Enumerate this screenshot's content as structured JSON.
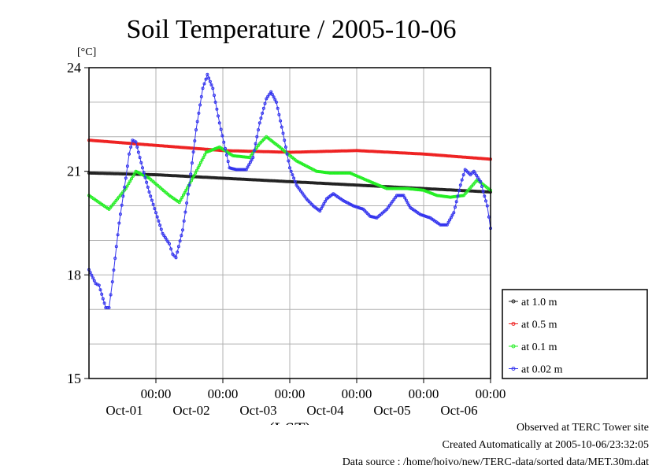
{
  "chart_data": {
    "type": "line",
    "title": "Soil Temperature / 2005-10-06",
    "ylabel_unit": "[°C]",
    "xlabel": "(LST)",
    "ylim": [
      15,
      24
    ],
    "xlim": [
      0,
      6
    ],
    "x_unit_note": "days from 2005-09-30 00:00 LST",
    "y_ticks": [
      15,
      18,
      21,
      24
    ],
    "x_tick_time_label": "00:00",
    "x_ticks": [
      {
        "x": 1,
        "time": "00:00",
        "date": "Oct-01"
      },
      {
        "x": 2,
        "time": "00:00",
        "date": "Oct-02"
      },
      {
        "x": 3,
        "time": "00:00",
        "date": "Oct-03"
      },
      {
        "x": 4,
        "time": "00:00",
        "date": "Oct-04"
      },
      {
        "x": 5,
        "time": "00:00",
        "date": "Oct-05"
      },
      {
        "x": 6,
        "time": "00:00",
        "date": "Oct-06"
      }
    ],
    "grid": true,
    "legend_position": "right-bottom",
    "series": [
      {
        "name": "at 1.0 m",
        "color": "#222222",
        "points": [
          [
            0,
            20.95
          ],
          [
            1,
            20.9
          ],
          [
            2,
            20.8
          ],
          [
            3,
            20.7
          ],
          [
            4,
            20.6
          ],
          [
            5,
            20.5
          ],
          [
            6,
            20.4
          ]
        ]
      },
      {
        "name": "at 0.5 m",
        "color": "#ee2222",
        "points": [
          [
            0,
            21.9
          ],
          [
            1,
            21.75
          ],
          [
            2,
            21.6
          ],
          [
            3,
            21.55
          ],
          [
            4,
            21.6
          ],
          [
            5,
            21.5
          ],
          [
            6,
            21.35
          ]
        ]
      },
      {
        "name": "at 0.1 m",
        "color": "#22ee22",
        "points": [
          [
            0,
            20.3
          ],
          [
            0.3,
            19.9
          ],
          [
            0.55,
            20.5
          ],
          [
            0.7,
            21.0
          ],
          [
            0.9,
            20.8
          ],
          [
            1.2,
            20.3
          ],
          [
            1.35,
            20.1
          ],
          [
            1.55,
            20.8
          ],
          [
            1.75,
            21.55
          ],
          [
            1.95,
            21.7
          ],
          [
            2.15,
            21.45
          ],
          [
            2.4,
            21.4
          ],
          [
            2.55,
            21.8
          ],
          [
            2.65,
            22.0
          ],
          [
            2.85,
            21.7
          ],
          [
            3.1,
            21.3
          ],
          [
            3.4,
            21.0
          ],
          [
            3.6,
            20.95
          ],
          [
            3.9,
            20.95
          ],
          [
            4.2,
            20.7
          ],
          [
            4.45,
            20.5
          ],
          [
            4.75,
            20.5
          ],
          [
            5.0,
            20.45
          ],
          [
            5.2,
            20.3
          ],
          [
            5.4,
            20.25
          ],
          [
            5.6,
            20.3
          ],
          [
            5.8,
            20.75
          ],
          [
            6.0,
            20.45
          ]
        ]
      },
      {
        "name": "at 0.02 m",
        "color": "#3333ee",
        "points": [
          [
            0,
            18.15
          ],
          [
            0.1,
            17.75
          ],
          [
            0.15,
            17.7
          ],
          [
            0.25,
            17.05
          ],
          [
            0.3,
            17.05
          ],
          [
            0.35,
            17.8
          ],
          [
            0.45,
            19.5
          ],
          [
            0.55,
            20.8
          ],
          [
            0.6,
            21.5
          ],
          [
            0.65,
            21.9
          ],
          [
            0.7,
            21.85
          ],
          [
            0.8,
            21.1
          ],
          [
            0.9,
            20.4
          ],
          [
            1.0,
            19.8
          ],
          [
            1.1,
            19.2
          ],
          [
            1.2,
            18.9
          ],
          [
            1.25,
            18.6
          ],
          [
            1.3,
            18.5
          ],
          [
            1.4,
            19.3
          ],
          [
            1.5,
            20.6
          ],
          [
            1.6,
            22.2
          ],
          [
            1.7,
            23.4
          ],
          [
            1.77,
            23.8
          ],
          [
            1.85,
            23.4
          ],
          [
            1.95,
            22.4
          ],
          [
            2.1,
            21.1
          ],
          [
            2.2,
            21.05
          ],
          [
            2.35,
            21.05
          ],
          [
            2.45,
            21.4
          ],
          [
            2.55,
            22.4
          ],
          [
            2.65,
            23.1
          ],
          [
            2.72,
            23.3
          ],
          [
            2.8,
            23.0
          ],
          [
            2.9,
            22.1
          ],
          [
            3.0,
            21.1
          ],
          [
            3.1,
            20.6
          ],
          [
            3.25,
            20.2
          ],
          [
            3.35,
            20.0
          ],
          [
            3.45,
            19.85
          ],
          [
            3.55,
            20.2
          ],
          [
            3.65,
            20.35
          ],
          [
            3.8,
            20.15
          ],
          [
            3.95,
            20.0
          ],
          [
            4.1,
            19.9
          ],
          [
            4.2,
            19.7
          ],
          [
            4.3,
            19.65
          ],
          [
            4.45,
            19.9
          ],
          [
            4.6,
            20.3
          ],
          [
            4.7,
            20.3
          ],
          [
            4.8,
            19.95
          ],
          [
            4.95,
            19.75
          ],
          [
            5.1,
            19.65
          ],
          [
            5.25,
            19.45
          ],
          [
            5.35,
            19.45
          ],
          [
            5.45,
            19.8
          ],
          [
            5.55,
            20.6
          ],
          [
            5.62,
            21.05
          ],
          [
            5.7,
            20.9
          ],
          [
            5.75,
            21.0
          ],
          [
            5.85,
            20.7
          ],
          [
            5.95,
            20.0
          ],
          [
            6.0,
            19.35
          ]
        ]
      }
    ]
  },
  "footer": {
    "line1": "Observed at TERC Tower site",
    "line2": "Created Automatically at 2005-10-06/23:32:05",
    "line3": "Data source : /home/hoivo/new/TERC-data/sorted  data/MET.30m.dat"
  }
}
